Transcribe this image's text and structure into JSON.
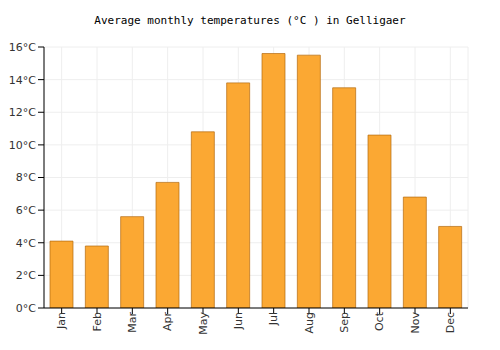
{
  "chart_data": {
    "type": "bar",
    "title": "Average monthly temperatures (°C ) in Gelligaer",
    "categories": [
      "Jan",
      "Feb",
      "Mar",
      "Apr",
      "May",
      "Jun",
      "Jul",
      "Aug",
      "Sep",
      "Oct",
      "Nov",
      "Dec"
    ],
    "values": [
      4.1,
      3.8,
      5.6,
      7.7,
      10.8,
      13.8,
      15.6,
      15.5,
      13.5,
      10.6,
      6.8,
      5.0
    ],
    "color": "#fba833",
    "ylim": [
      0,
      16
    ],
    "yticks": [
      {
        "value": 0,
        "label": "0°C"
      },
      {
        "value": 2,
        "label": "2°C"
      },
      {
        "value": 4,
        "label": "4°C"
      },
      {
        "value": 6,
        "label": "6°C"
      },
      {
        "value": 8,
        "label": "8°C"
      },
      {
        "value": 10,
        "label": "10°C"
      },
      {
        "value": 12,
        "label": "12°C"
      },
      {
        "value": 14,
        "label": "14°C"
      },
      {
        "value": 16,
        "label": "16°C"
      }
    ],
    "grid": true
  }
}
